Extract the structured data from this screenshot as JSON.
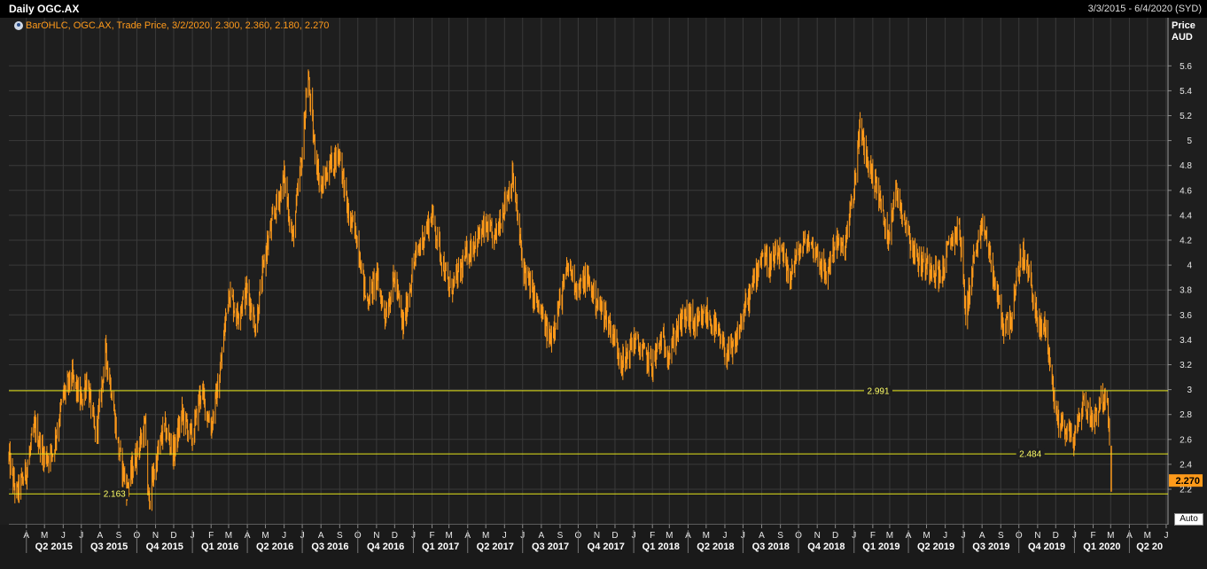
{
  "header": {
    "title": "Daily OGC.AX",
    "date_range": "3/3/2015 - 6/4/2020 (SYD)"
  },
  "legend": {
    "text": "BarOHLC, OGC.AX, Trade Price, 3/2/2020, 2.300, 2.360, 2.180, 2.270"
  },
  "axis": {
    "price_label": "Price",
    "currency_label": "AUD",
    "auto_label": "Auto"
  },
  "last_price": {
    "value": 2.27,
    "label": "2.270"
  },
  "colors": {
    "bars": "#ff9a1a",
    "levels": "#e6e61a",
    "grid": "#3a3a3a",
    "last_price_bg": "#ff9a1a"
  },
  "chart_data": {
    "type": "bar",
    "title": "Daily OGC.AX",
    "ylabel": "Price AUD",
    "ylim": [
      2.0,
      5.75
    ],
    "y_ticks": [
      "2.2",
      "2.4",
      "2.6",
      "2.8",
      "3",
      "3.2",
      "3.4",
      "3.6",
      "3.8",
      "4",
      "4.2",
      "4.4",
      "4.6",
      "4.8",
      "5",
      "5.2",
      "5.4",
      "5.6"
    ],
    "x_start": "2015-03-03",
    "x_end": "2020-06-04",
    "month_ticks": [
      {
        "date": "2015-04-01",
        "label": "A"
      },
      {
        "date": "2015-05-01",
        "label": "M"
      },
      {
        "date": "2015-06-01",
        "label": "J"
      },
      {
        "date": "2015-07-01",
        "label": "J"
      },
      {
        "date": "2015-08-01",
        "label": "A"
      },
      {
        "date": "2015-09-01",
        "label": "S"
      },
      {
        "date": "2015-10-01",
        "label": "O"
      },
      {
        "date": "2015-11-01",
        "label": "N"
      },
      {
        "date": "2015-12-01",
        "label": "D"
      },
      {
        "date": "2016-01-01",
        "label": "J"
      },
      {
        "date": "2016-02-01",
        "label": "F"
      },
      {
        "date": "2016-03-01",
        "label": "M"
      },
      {
        "date": "2016-04-01",
        "label": "A"
      },
      {
        "date": "2016-05-01",
        "label": "M"
      },
      {
        "date": "2016-06-01",
        "label": "J"
      },
      {
        "date": "2016-07-01",
        "label": "J"
      },
      {
        "date": "2016-08-01",
        "label": "A"
      },
      {
        "date": "2016-09-01",
        "label": "S"
      },
      {
        "date": "2016-10-01",
        "label": "O"
      },
      {
        "date": "2016-11-01",
        "label": "N"
      },
      {
        "date": "2016-12-01",
        "label": "D"
      },
      {
        "date": "2017-01-01",
        "label": "J"
      },
      {
        "date": "2017-02-01",
        "label": "F"
      },
      {
        "date": "2017-03-01",
        "label": "M"
      },
      {
        "date": "2017-04-01",
        "label": "A"
      },
      {
        "date": "2017-05-01",
        "label": "M"
      },
      {
        "date": "2017-06-01",
        "label": "J"
      },
      {
        "date": "2017-07-01",
        "label": "J"
      },
      {
        "date": "2017-08-01",
        "label": "A"
      },
      {
        "date": "2017-09-01",
        "label": "S"
      },
      {
        "date": "2017-10-01",
        "label": "O"
      },
      {
        "date": "2017-11-01",
        "label": "N"
      },
      {
        "date": "2017-12-01",
        "label": "D"
      },
      {
        "date": "2018-01-01",
        "label": "J"
      },
      {
        "date": "2018-02-01",
        "label": "F"
      },
      {
        "date": "2018-03-01",
        "label": "M"
      },
      {
        "date": "2018-04-01",
        "label": "A"
      },
      {
        "date": "2018-05-01",
        "label": "M"
      },
      {
        "date": "2018-06-01",
        "label": "J"
      },
      {
        "date": "2018-07-01",
        "label": "J"
      },
      {
        "date": "2018-08-01",
        "label": "A"
      },
      {
        "date": "2018-09-01",
        "label": "S"
      },
      {
        "date": "2018-10-01",
        "label": "O"
      },
      {
        "date": "2018-11-01",
        "label": "N"
      },
      {
        "date": "2018-12-01",
        "label": "D"
      },
      {
        "date": "2019-01-01",
        "label": "J"
      },
      {
        "date": "2019-02-01",
        "label": "F"
      },
      {
        "date": "2019-03-01",
        "label": "M"
      },
      {
        "date": "2019-04-01",
        "label": "A"
      },
      {
        "date": "2019-05-01",
        "label": "M"
      },
      {
        "date": "2019-06-01",
        "label": "J"
      },
      {
        "date": "2019-07-01",
        "label": "J"
      },
      {
        "date": "2019-08-01",
        "label": "A"
      },
      {
        "date": "2019-09-01",
        "label": "S"
      },
      {
        "date": "2019-10-01",
        "label": "O"
      },
      {
        "date": "2019-11-01",
        "label": "N"
      },
      {
        "date": "2019-12-01",
        "label": "D"
      },
      {
        "date": "2020-01-01",
        "label": "J"
      },
      {
        "date": "2020-02-01",
        "label": "F"
      },
      {
        "date": "2020-03-01",
        "label": "M"
      },
      {
        "date": "2020-04-01",
        "label": "A"
      },
      {
        "date": "2020-05-01",
        "label": "M"
      },
      {
        "date": "2020-06-01",
        "label": "J"
      }
    ],
    "quarter_ticks": [
      {
        "date": "2015-04-01",
        "label": "Q2 2015"
      },
      {
        "date": "2015-07-01",
        "label": "Q3 2015"
      },
      {
        "date": "2015-10-01",
        "label": "Q4 2015"
      },
      {
        "date": "2016-01-01",
        "label": "Q1 2016"
      },
      {
        "date": "2016-04-01",
        "label": "Q2 2016"
      },
      {
        "date": "2016-07-01",
        "label": "Q3 2016"
      },
      {
        "date": "2016-10-01",
        "label": "Q4 2016"
      },
      {
        "date": "2017-01-01",
        "label": "Q1 2017"
      },
      {
        "date": "2017-04-01",
        "label": "Q2 2017"
      },
      {
        "date": "2017-07-01",
        "label": "Q3 2017"
      },
      {
        "date": "2017-10-01",
        "label": "Q4 2017"
      },
      {
        "date": "2018-01-01",
        "label": "Q1 2018"
      },
      {
        "date": "2018-04-01",
        "label": "Q2 2018"
      },
      {
        "date": "2018-07-01",
        "label": "Q3 2018"
      },
      {
        "date": "2018-10-01",
        "label": "Q4 2018"
      },
      {
        "date": "2019-01-01",
        "label": "Q1 2019"
      },
      {
        "date": "2019-04-01",
        "label": "Q2 2019"
      },
      {
        "date": "2019-07-01",
        "label": "Q3 2019"
      },
      {
        "date": "2019-10-01",
        "label": "Q4 2019"
      },
      {
        "date": "2020-01-01",
        "label": "Q1 2020"
      },
      {
        "date": "2020-04-01",
        "label": "Q2 20"
      }
    ],
    "levels": [
      {
        "value": 2.991,
        "label": "2.991",
        "label_date": "2019-02-10"
      },
      {
        "value": 2.484,
        "label": "2.484",
        "label_date": "2019-10-20"
      },
      {
        "value": 2.163,
        "label": "2.163",
        "label_date": "2015-08-25"
      }
    ],
    "series_points": [
      [
        "2015-03-03",
        2.45
      ],
      [
        "2015-03-15",
        2.15
      ],
      [
        "2015-04-01",
        2.35
      ],
      [
        "2015-04-15",
        2.7
      ],
      [
        "2015-05-01",
        2.45
      ],
      [
        "2015-05-15",
        2.5
      ],
      [
        "2015-06-01",
        2.95
      ],
      [
        "2015-06-15",
        3.1
      ],
      [
        "2015-07-01",
        2.9
      ],
      [
        "2015-07-10",
        3.1
      ],
      [
        "2015-07-25",
        2.6
      ],
      [
        "2015-08-10",
        3.3
      ],
      [
        "2015-08-20",
        3.0
      ],
      [
        "2015-09-01",
        2.5
      ],
      [
        "2015-09-15",
        2.2
      ],
      [
        "2015-10-01",
        2.5
      ],
      [
        "2015-10-15",
        2.7
      ],
      [
        "2015-10-20",
        2.1
      ],
      [
        "2015-11-01",
        2.4
      ],
      [
        "2015-11-15",
        2.7
      ],
      [
        "2015-12-01",
        2.5
      ],
      [
        "2015-12-15",
        2.8
      ],
      [
        "2016-01-01",
        2.6
      ],
      [
        "2016-01-15",
        3.0
      ],
      [
        "2016-02-01",
        2.7
      ],
      [
        "2016-02-15",
        3.1
      ],
      [
        "2016-03-01",
        3.8
      ],
      [
        "2016-03-15",
        3.6
      ],
      [
        "2016-04-01",
        3.8
      ],
      [
        "2016-04-15",
        3.5
      ],
      [
        "2016-05-01",
        4.1
      ],
      [
        "2016-05-15",
        4.4
      ],
      [
        "2016-06-01",
        4.7
      ],
      [
        "2016-06-15",
        4.2
      ],
      [
        "2016-07-01",
        4.9
      ],
      [
        "2016-07-10",
        5.55
      ],
      [
        "2016-07-20",
        5.0
      ],
      [
        "2016-08-01",
        4.6
      ],
      [
        "2016-08-15",
        4.8
      ],
      [
        "2016-09-01",
        4.9
      ],
      [
        "2016-09-15",
        4.4
      ],
      [
        "2016-10-01",
        4.2
      ],
      [
        "2016-10-15",
        3.7
      ],
      [
        "2016-11-01",
        3.9
      ],
      [
        "2016-11-15",
        3.6
      ],
      [
        "2016-12-01",
        3.9
      ],
      [
        "2016-12-15",
        3.5
      ],
      [
        "2017-01-01",
        4.0
      ],
      [
        "2017-01-15",
        4.2
      ],
      [
        "2017-02-01",
        4.4
      ],
      [
        "2017-02-15",
        4.1
      ],
      [
        "2017-03-01",
        3.8
      ],
      [
        "2017-03-15",
        3.9
      ],
      [
        "2017-04-01",
        4.1
      ],
      [
        "2017-04-15",
        4.2
      ],
      [
        "2017-05-01",
        4.3
      ],
      [
        "2017-05-15",
        4.2
      ],
      [
        "2017-06-01",
        4.5
      ],
      [
        "2017-06-15",
        4.7
      ],
      [
        "2017-07-01",
        4.0
      ],
      [
        "2017-07-15",
        3.8
      ],
      [
        "2017-08-01",
        3.6
      ],
      [
        "2017-08-15",
        3.4
      ],
      [
        "2017-09-01",
        3.7
      ],
      [
        "2017-09-15",
        4.0
      ],
      [
        "2017-10-01",
        3.8
      ],
      [
        "2017-10-15",
        3.9
      ],
      [
        "2017-11-01",
        3.7
      ],
      [
        "2017-11-15",
        3.6
      ],
      [
        "2017-12-01",
        3.4
      ],
      [
        "2017-12-15",
        3.2
      ],
      [
        "2018-01-01",
        3.4
      ],
      [
        "2018-01-15",
        3.3
      ],
      [
        "2018-02-01",
        3.2
      ],
      [
        "2018-02-15",
        3.4
      ],
      [
        "2018-03-01",
        3.3
      ],
      [
        "2018-03-15",
        3.5
      ],
      [
        "2018-04-01",
        3.6
      ],
      [
        "2018-04-15",
        3.5
      ],
      [
        "2018-05-01",
        3.6
      ],
      [
        "2018-05-15",
        3.5
      ],
      [
        "2018-06-01",
        3.3
      ],
      [
        "2018-06-15",
        3.3
      ],
      [
        "2018-07-01",
        3.6
      ],
      [
        "2018-07-15",
        3.8
      ],
      [
        "2018-08-01",
        4.1
      ],
      [
        "2018-08-15",
        4.0
      ],
      [
        "2018-09-01",
        4.1
      ],
      [
        "2018-09-15",
        3.9
      ],
      [
        "2018-10-01",
        4.1
      ],
      [
        "2018-10-15",
        4.2
      ],
      [
        "2018-11-01",
        4.1
      ],
      [
        "2018-11-15",
        3.9
      ],
      [
        "2018-12-01",
        4.2
      ],
      [
        "2018-12-15",
        4.1
      ],
      [
        "2019-01-01",
        4.6
      ],
      [
        "2019-01-10",
        5.1
      ],
      [
        "2019-01-25",
        4.8
      ],
      [
        "2019-02-10",
        4.6
      ],
      [
        "2019-02-25",
        4.2
      ],
      [
        "2019-03-10",
        4.6
      ],
      [
        "2019-03-25",
        4.4
      ],
      [
        "2019-04-10",
        4.1
      ],
      [
        "2019-04-25",
        4.0
      ],
      [
        "2019-05-10",
        4.0
      ],
      [
        "2019-05-25",
        3.9
      ],
      [
        "2019-06-10",
        4.2
      ],
      [
        "2019-06-25",
        4.3
      ],
      [
        "2019-07-05",
        3.6
      ],
      [
        "2019-07-20",
        4.1
      ],
      [
        "2019-08-05",
        4.3
      ],
      [
        "2019-08-20",
        3.9
      ],
      [
        "2019-09-05",
        3.5
      ],
      [
        "2019-09-20",
        3.6
      ],
      [
        "2019-10-05",
        4.1
      ],
      [
        "2019-10-20",
        3.9
      ],
      [
        "2019-11-01",
        3.5
      ],
      [
        "2019-11-15",
        3.5
      ],
      [
        "2019-12-01",
        2.8
      ],
      [
        "2019-12-15",
        2.7
      ],
      [
        "2020-01-01",
        2.6
      ],
      [
        "2020-01-15",
        2.9
      ],
      [
        "2020-02-01",
        2.75
      ],
      [
        "2020-02-15",
        2.95
      ],
      [
        "2020-02-25",
        2.85
      ],
      [
        "2020-03-02",
        2.27
      ]
    ]
  }
}
